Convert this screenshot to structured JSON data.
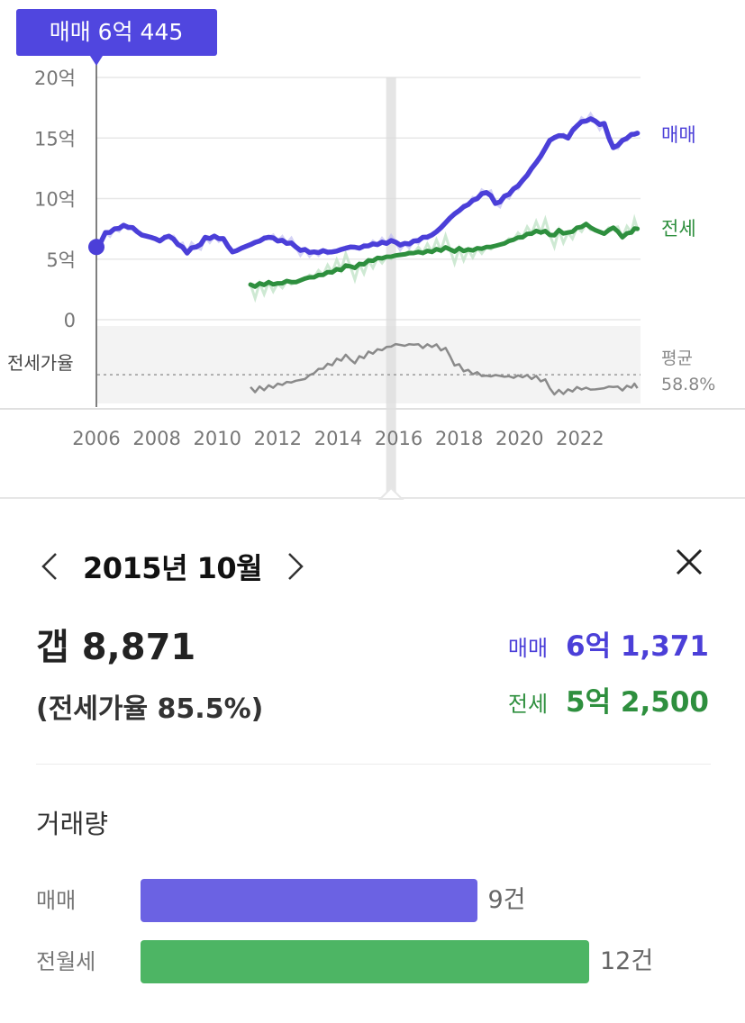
{
  "chart_data": {
    "type": "line",
    "tooltip": "매매 6억 445",
    "y_ticks": [
      "20억",
      "15억",
      "10억",
      "5억",
      "0"
    ],
    "y_tick_values": [
      20,
      15,
      10,
      5,
      0
    ],
    "ylim": [
      0,
      20
    ],
    "x_ticks": [
      "2006",
      "2008",
      "2010",
      "2012",
      "2014",
      "2016",
      "2018",
      "2020",
      "2022"
    ],
    "x_tick_values": [
      2006,
      2008,
      2010,
      2012,
      2014,
      2016,
      2018,
      2020,
      2022
    ],
    "xlim": [
      2006,
      2024
    ],
    "selected_x": 2015.75,
    "ratio_label": "전세가율",
    "ratio_average_label": "평균",
    "ratio_average_value": "58.8%",
    "ratio_ylim": [
      40,
      95
    ],
    "ratio_average": 58.8,
    "series": [
      {
        "name": "매매",
        "color": "#4b3fd8",
        "x": [
          2006.0,
          2006.3,
          2006.6,
          2006.9,
          2007.2,
          2007.5,
          2007.8,
          2008.1,
          2008.4,
          2008.7,
          2009.0,
          2009.3,
          2009.6,
          2009.9,
          2010.2,
          2010.5,
          2010.8,
          2011.1,
          2011.4,
          2011.7,
          2012.0,
          2012.3,
          2012.6,
          2012.9,
          2013.2,
          2013.5,
          2013.8,
          2014.1,
          2014.4,
          2014.7,
          2015.0,
          2015.3,
          2015.6,
          2015.9,
          2016.2,
          2016.5,
          2016.8,
          2017.1,
          2017.4,
          2017.7,
          2018.0,
          2018.3,
          2018.6,
          2018.9,
          2019.2,
          2019.5,
          2019.8,
          2020.1,
          2020.4,
          2020.7,
          2021.0,
          2021.3,
          2021.6,
          2021.9,
          2022.2,
          2022.5,
          2022.8,
          2023.1,
          2023.4,
          2023.7,
          2023.9
        ],
        "values": [
          6.0,
          7.2,
          7.5,
          7.8,
          7.6,
          7.0,
          6.8,
          6.5,
          6.9,
          6.2,
          5.5,
          6.0,
          6.8,
          6.9,
          6.7,
          5.6,
          5.9,
          6.2,
          6.5,
          6.8,
          6.5,
          6.3,
          6.0,
          5.8,
          5.6,
          5.7,
          5.6,
          5.8,
          6.0,
          5.9,
          6.1,
          6.2,
          6.3,
          6.4,
          6.3,
          6.5,
          6.8,
          7.0,
          7.6,
          8.4,
          9.0,
          9.5,
          10.0,
          10.5,
          9.6,
          10.2,
          10.8,
          11.5,
          12.5,
          13.5,
          14.8,
          15.2,
          15.0,
          16.0,
          16.4,
          16.4,
          16.2,
          14.2,
          14.8,
          15.3,
          15.4
        ]
      },
      {
        "name": "전세",
        "color": "#2e8f3e",
        "x": [
          2011.1,
          2011.4,
          2011.7,
          2012.0,
          2012.3,
          2012.6,
          2012.9,
          2013.2,
          2013.5,
          2013.8,
          2014.1,
          2014.4,
          2014.7,
          2015.0,
          2015.3,
          2015.6,
          2015.9,
          2016.2,
          2016.5,
          2016.8,
          2017.1,
          2017.4,
          2017.7,
          2018.0,
          2018.3,
          2018.6,
          2018.9,
          2019.2,
          2019.5,
          2019.8,
          2020.1,
          2020.4,
          2020.7,
          2021.0,
          2021.3,
          2021.6,
          2021.9,
          2022.2,
          2022.5,
          2022.8,
          2023.1,
          2023.4,
          2023.7,
          2023.9
        ],
        "values": [
          2.9,
          3.0,
          3.1,
          3.0,
          3.2,
          3.1,
          3.4,
          3.5,
          3.7,
          3.9,
          4.1,
          4.4,
          4.6,
          4.9,
          5.1,
          5.2,
          5.3,
          5.4,
          5.5,
          5.5,
          5.6,
          5.7,
          5.8,
          5.9,
          5.8,
          5.9,
          6.0,
          6.1,
          6.3,
          6.6,
          6.8,
          7.1,
          7.2,
          7.0,
          7.4,
          7.2,
          7.6,
          7.9,
          7.4,
          7.1,
          7.6,
          6.8,
          7.2,
          7.5
        ]
      },
      {
        "name": "전세가율",
        "color": "#8a8a8a",
        "x": [
          2011.1,
          2011.4,
          2011.7,
          2012.0,
          2012.3,
          2012.6,
          2012.9,
          2013.2,
          2013.5,
          2013.8,
          2014.1,
          2014.4,
          2014.7,
          2015.0,
          2015.3,
          2015.6,
          2015.9,
          2016.2,
          2016.5,
          2016.8,
          2017.1,
          2017.4,
          2017.7,
          2018.0,
          2018.3,
          2018.6,
          2018.9,
          2019.2,
          2019.5,
          2019.8,
          2020.1,
          2020.4,
          2020.7,
          2021.0,
          2021.3,
          2021.6,
          2021.9,
          2022.2,
          2022.5,
          2022.8,
          2023.1,
          2023.4,
          2023.7,
          2023.9
        ],
        "values": [
          48.0,
          48.5,
          49.5,
          51.0,
          52.5,
          53.5,
          55.0,
          60.0,
          64.0,
          67.0,
          71.0,
          72.0,
          75.0,
          79.0,
          81.0,
          83.0,
          85.5,
          84.0,
          85.0,
          82.0,
          83.0,
          80.0,
          75.0,
          68.0,
          63.0,
          61.0,
          58.0,
          58.5,
          57.0,
          56.0,
          56.5,
          55.0,
          53.0,
          47.0,
          45.5,
          46.0,
          48.0,
          47.5,
          46.0,
          47.0,
          48.0,
          45.0,
          47.5,
          47.0
        ]
      }
    ]
  },
  "detail": {
    "month": "2015년 10월",
    "gap": "갭 8,871",
    "ratio": "(전세가율 85.5%)",
    "sale_label": "매매",
    "sale_value": "6억 1,371",
    "jeonse_label": "전세",
    "jeonse_value": "5억 2,500"
  },
  "volume": {
    "title": "거래량",
    "max": 12,
    "rows": [
      {
        "label": "매매",
        "count": 9,
        "count_text": "9건",
        "color": "#6b62e3"
      },
      {
        "label": "전월세",
        "count": 12,
        "count_text": "12건",
        "color": "#4db564"
      }
    ]
  }
}
